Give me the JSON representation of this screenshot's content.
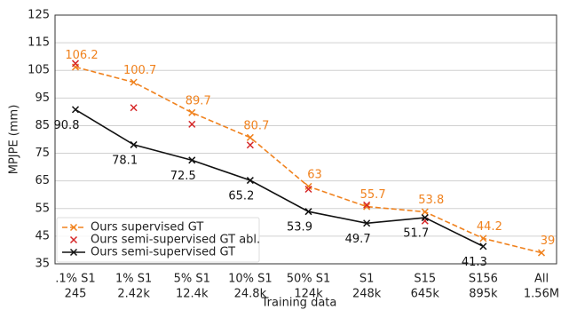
{
  "chart_data": {
    "type": "line",
    "x_label": "Training data",
    "y_label": "MPJPE (mm)",
    "categories": [
      [
        ".1% S1",
        "245"
      ],
      [
        "1% S1",
        "2.42k"
      ],
      [
        "5% S1",
        "12.4k"
      ],
      [
        "10% S1",
        "24.8k"
      ],
      [
        "50% S1",
        "124k"
      ],
      [
        "S1",
        "248k"
      ],
      [
        "S15",
        "645k"
      ],
      [
        "S156",
        "895k"
      ],
      [
        "All",
        "1.56M"
      ]
    ],
    "series": [
      {
        "name": "Ours supervised GT",
        "color": "#f0821e",
        "linestyle": "dashed",
        "labels": "above",
        "values": [
          106.2,
          100.7,
          89.7,
          80.7,
          63,
          55.7,
          53.8,
          44.2,
          39
        ]
      },
      {
        "name": "Ours semi-supervised GT abl.",
        "color": "#d62728",
        "linestyle": "none",
        "labels": "none",
        "values": [
          107.5,
          91.5,
          85.5,
          78,
          62,
          56.3,
          50.5,
          null,
          null
        ]
      },
      {
        "name": "Ours semi-supervised GT",
        "color": "#111111",
        "linestyle": "solid",
        "labels": "below",
        "values": [
          90.8,
          78.1,
          72.5,
          65.2,
          53.9,
          49.7,
          51.7,
          41.3,
          null
        ]
      }
    ],
    "ylim": [
      35,
      125
    ],
    "yticks": [
      35,
      45,
      55,
      65,
      75,
      85,
      95,
      105,
      115,
      125
    ],
    "grid": true,
    "legend": "lower left"
  }
}
